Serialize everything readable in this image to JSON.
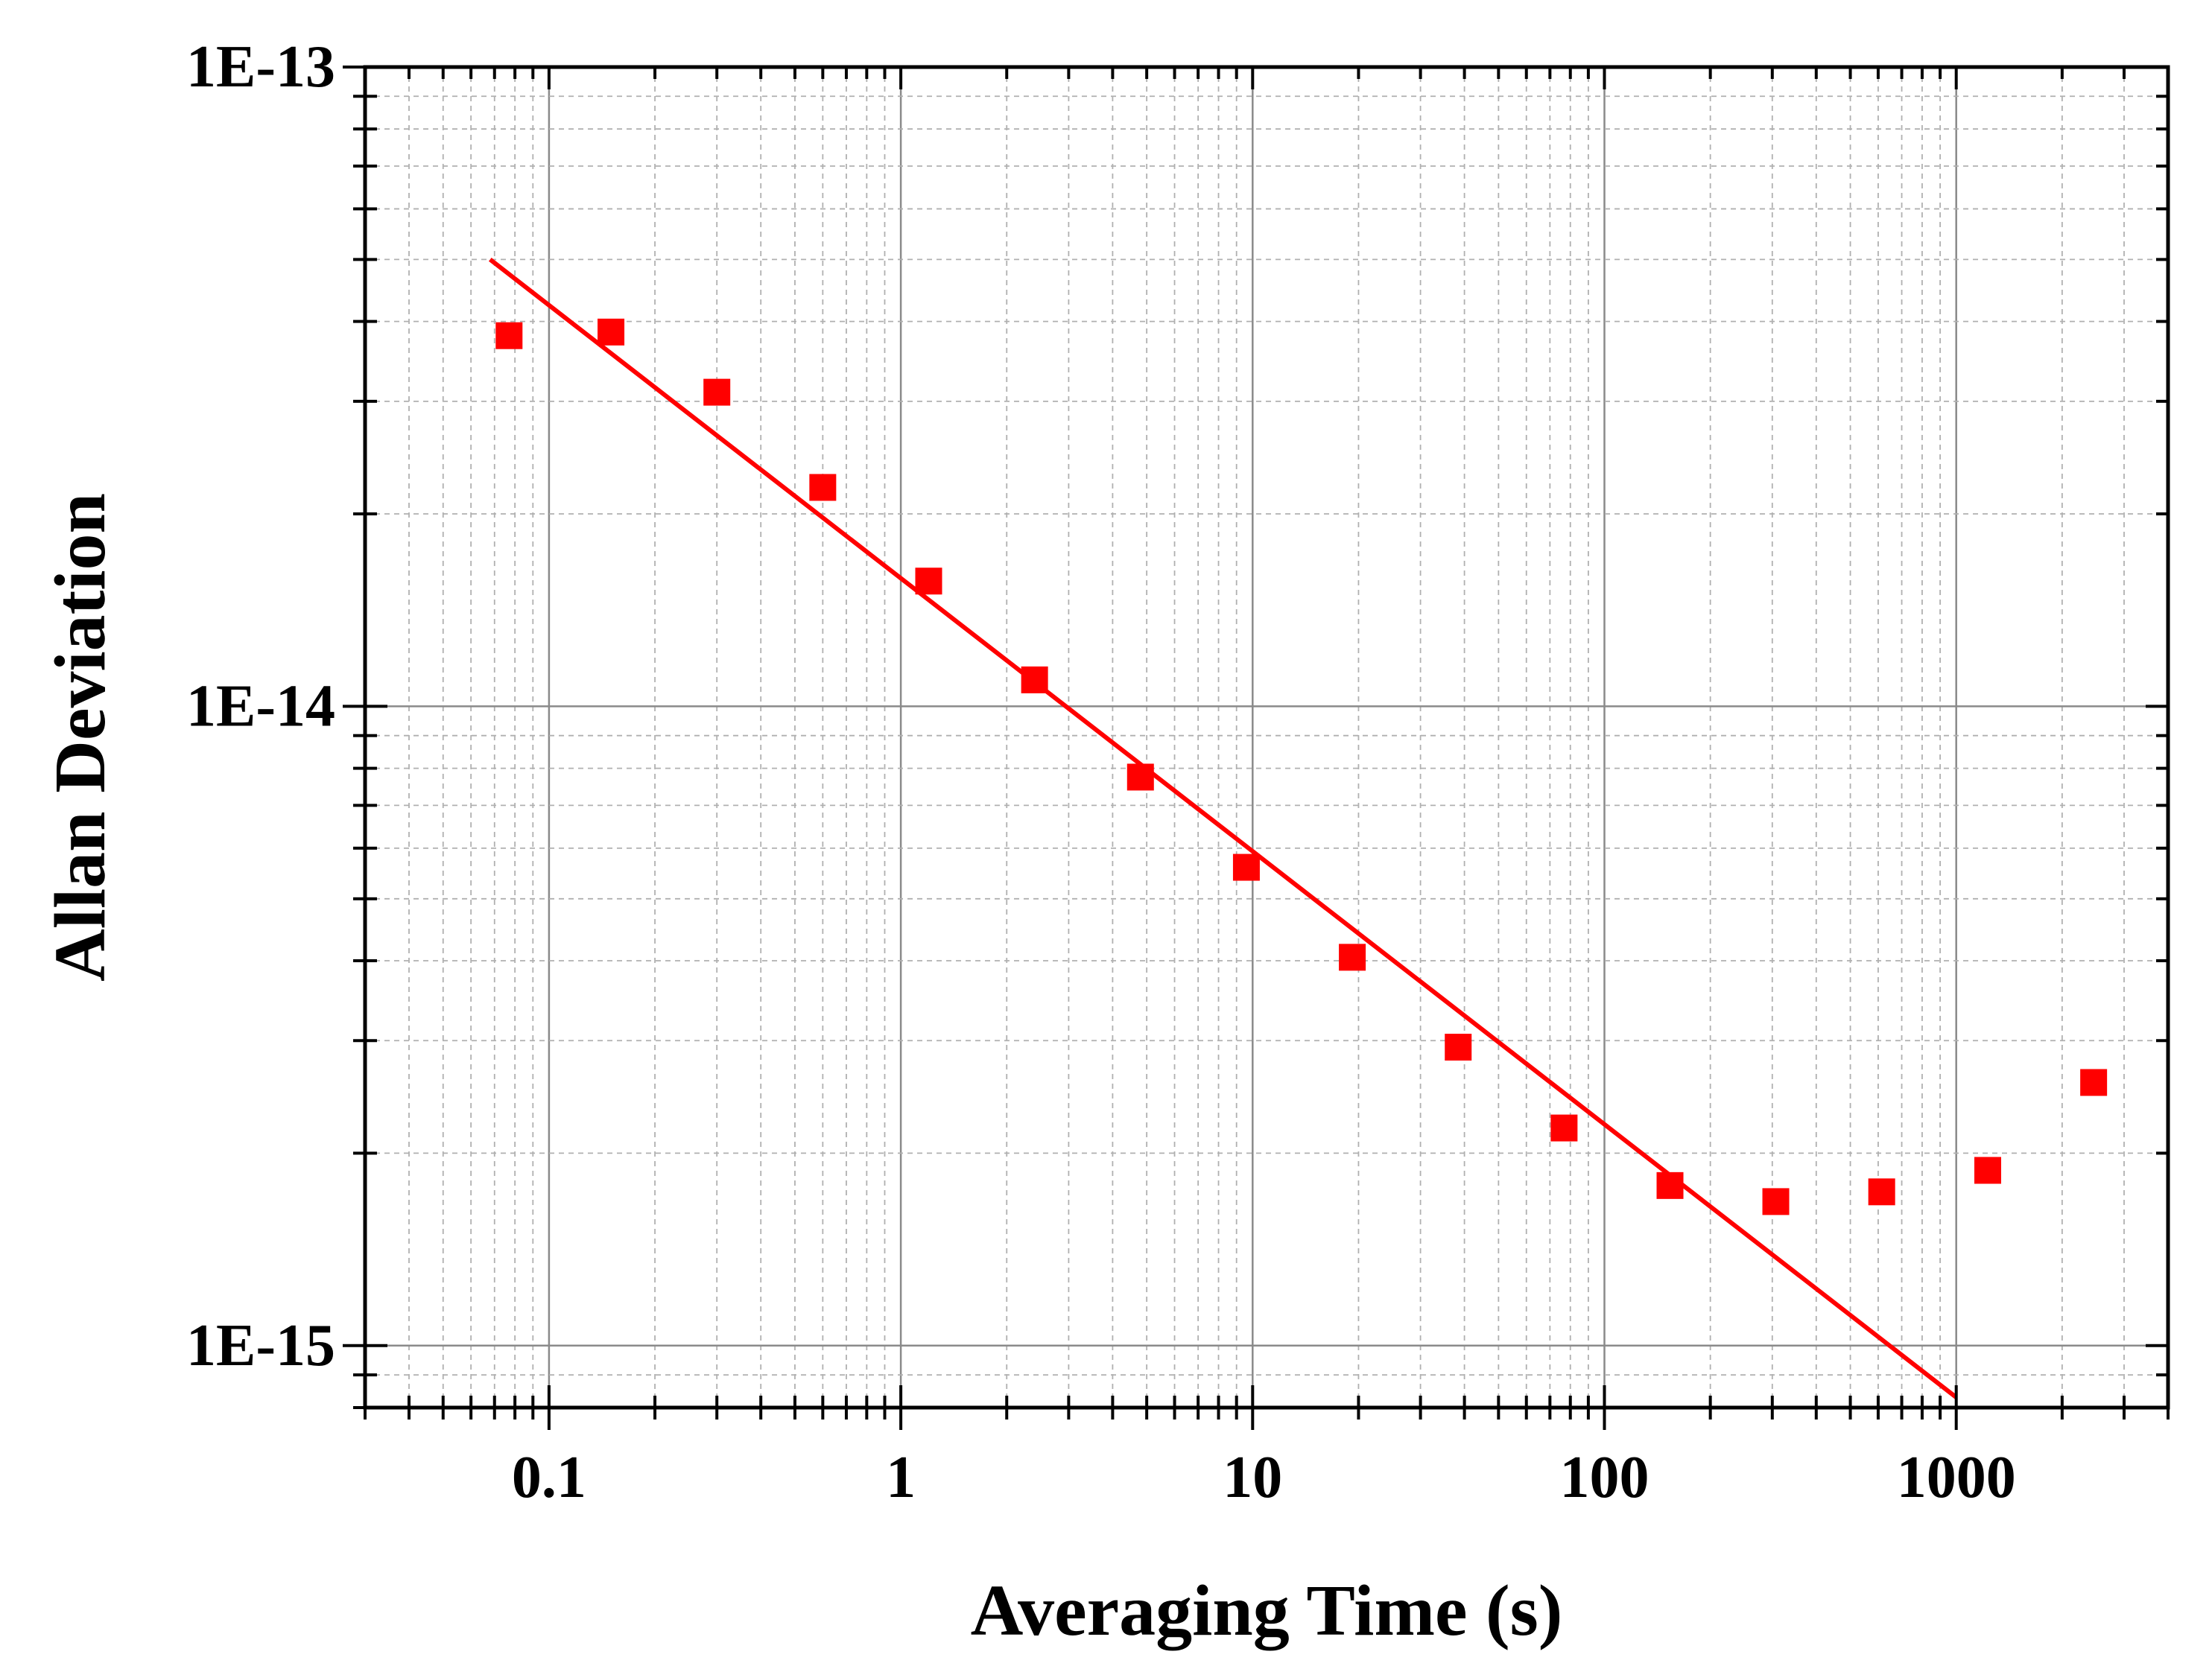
{
  "chart_data": {
    "type": "scatter",
    "title": "",
    "xlabel": "Averaging Time (s)",
    "ylabel": "Allan Deviation",
    "xscale": "log",
    "yscale": "log",
    "xlim": [
      0.03,
      4000
    ],
    "ylim": [
      8e-16,
      1e-13
    ],
    "grid": true,
    "legend": "none",
    "x_tick_labels": [
      {
        "value": 0.1,
        "label": "0.1"
      },
      {
        "value": 1,
        "label": "1"
      },
      {
        "value": 10,
        "label": "10"
      },
      {
        "value": 100,
        "label": "100"
      },
      {
        "value": 1000,
        "label": "1000"
      }
    ],
    "y_tick_labels": [
      {
        "value": 1e-13,
        "label": "1E-13"
      },
      {
        "value": 1e-14,
        "label": "1E-14"
      },
      {
        "value": 1e-15,
        "label": "1E-15"
      }
    ],
    "series": [
      {
        "kind": "markers",
        "marker": "square",
        "color": "#ff0000",
        "x": [
          0.077,
          0.15,
          0.3,
          0.6,
          1.2,
          2.4,
          4.8,
          9.6,
          19.2,
          38.4,
          76.8,
          153.6,
          307,
          614,
          1229,
          2458
        ],
        "y": [
          3.8e-14,
          3.85e-14,
          3.1e-14,
          2.2e-14,
          1.57e-14,
          1.1e-14,
          7.75e-15,
          5.6e-15,
          4.05e-15,
          2.93e-15,
          2.19e-15,
          1.78e-15,
          1.68e-15,
          1.74e-15,
          1.88e-15,
          2.58e-15
        ]
      },
      {
        "kind": "line",
        "color": "#ff0000",
        "x": [
          0.068,
          1000
        ],
        "y": [
          5e-14,
          8.3e-16
        ]
      }
    ]
  }
}
